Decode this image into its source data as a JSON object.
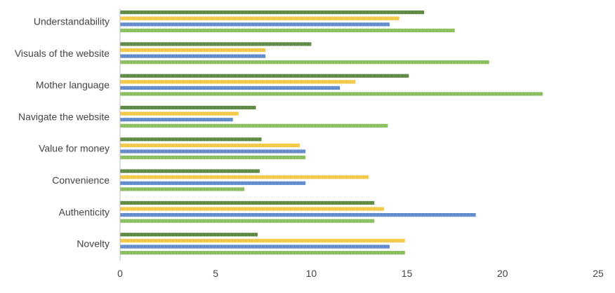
{
  "chart_data": {
    "type": "bar",
    "orientation": "horizontal",
    "categories": [
      "Understandability",
      "Visuals of the website",
      "Mother language",
      "Navigate the website",
      "Value for money",
      "Convenience",
      "Authenticity",
      "Novelty"
    ],
    "series": [
      {
        "color": "#4a7a2c",
        "values": [
          15.9,
          10.0,
          15.1,
          7.1,
          7.4,
          7.3,
          13.3,
          7.2
        ]
      },
      {
        "color": "#f2c230",
        "values": [
          14.6,
          7.6,
          12.3,
          6.2,
          9.4,
          13.0,
          13.8,
          14.9
        ]
      },
      {
        "color": "#4e7cc6",
        "values": [
          14.1,
          7.6,
          11.5,
          5.9,
          9.7,
          9.7,
          18.6,
          14.1
        ]
      },
      {
        "color": "#7ab648",
        "values": [
          17.5,
          19.3,
          22.1,
          14.0,
          9.7,
          6.5,
          13.3,
          14.9
        ]
      }
    ],
    "xlim": [
      0,
      25
    ],
    "xticks": [
      "0",
      "5",
      "10",
      "15",
      "20",
      "25"
    ],
    "title": "",
    "xlabel": "",
    "ylabel": "",
    "grid": false,
    "legend": "none"
  }
}
